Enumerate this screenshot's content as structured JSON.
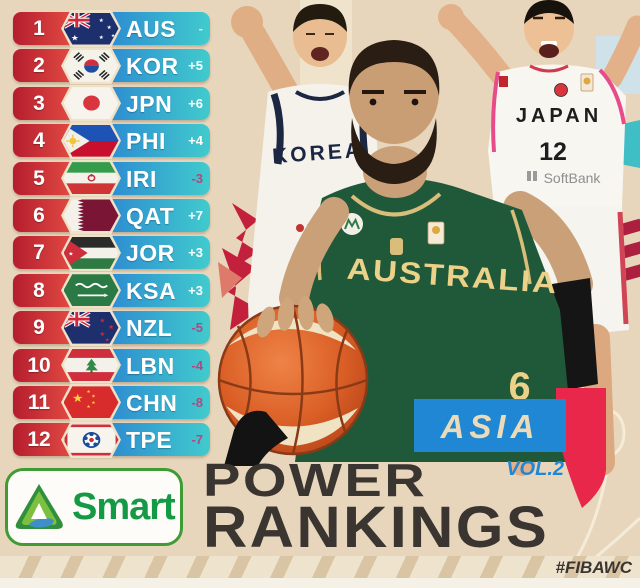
{
  "rankings": [
    {
      "rank": "1",
      "code": "AUS",
      "flag": "aus",
      "change": "-",
      "trend": "same"
    },
    {
      "rank": "2",
      "code": "KOR",
      "flag": "kor",
      "change": "+5",
      "trend": "up"
    },
    {
      "rank": "3",
      "code": "JPN",
      "flag": "jpn",
      "change": "+6",
      "trend": "up"
    },
    {
      "rank": "4",
      "code": "PHI",
      "flag": "phi",
      "change": "+4",
      "trend": "up"
    },
    {
      "rank": "5",
      "code": "IRI",
      "flag": "iri",
      "change": "-3",
      "trend": "down"
    },
    {
      "rank": "6",
      "code": "QAT",
      "flag": "qat",
      "change": "+7",
      "trend": "up"
    },
    {
      "rank": "7",
      "code": "JOR",
      "flag": "jor",
      "change": "+3",
      "trend": "up"
    },
    {
      "rank": "8",
      "code": "KSA",
      "flag": "ksa",
      "change": "+3",
      "trend": "up"
    },
    {
      "rank": "9",
      "code": "NZL",
      "flag": "nzl",
      "change": "-5",
      "trend": "down"
    },
    {
      "rank": "10",
      "code": "LBN",
      "flag": "lbn",
      "change": "-4",
      "trend": "down"
    },
    {
      "rank": "11",
      "code": "CHN",
      "flag": "chn",
      "change": "-8",
      "trend": "down"
    },
    {
      "rank": "12",
      "code": "TPE",
      "flag": "tpe",
      "change": "-7",
      "trend": "down"
    }
  ],
  "players": {
    "korea_jersey": "KOREA",
    "japan_jersey": "JAPAN",
    "japan_number": "12",
    "japan_sponsor": "SoftBank",
    "australia_jersey": "AUSTRALIA",
    "australia_number": "6"
  },
  "footer": {
    "sponsor": "Smart",
    "title_line1": "POWER",
    "title_line2": "RANKINGS",
    "region": "ASIA",
    "volume": "VOL.2",
    "hashtag": "#FIBAWC"
  },
  "colors": {
    "background": "#e7d6bc",
    "row_red_start": "#b51d2e",
    "row_red_end": "#f15a4a",
    "row_blue_start": "#2a82d2",
    "row_blue_end": "#41cbcd",
    "positive_change": "#ffffff",
    "negative_change": "#b2487f",
    "no_change": "#cff2ef",
    "asia_blue": "#1f87d3",
    "ribbon_red": "#e8274b",
    "title_dark": "#3a3531",
    "smart_green": "#149a45"
  }
}
